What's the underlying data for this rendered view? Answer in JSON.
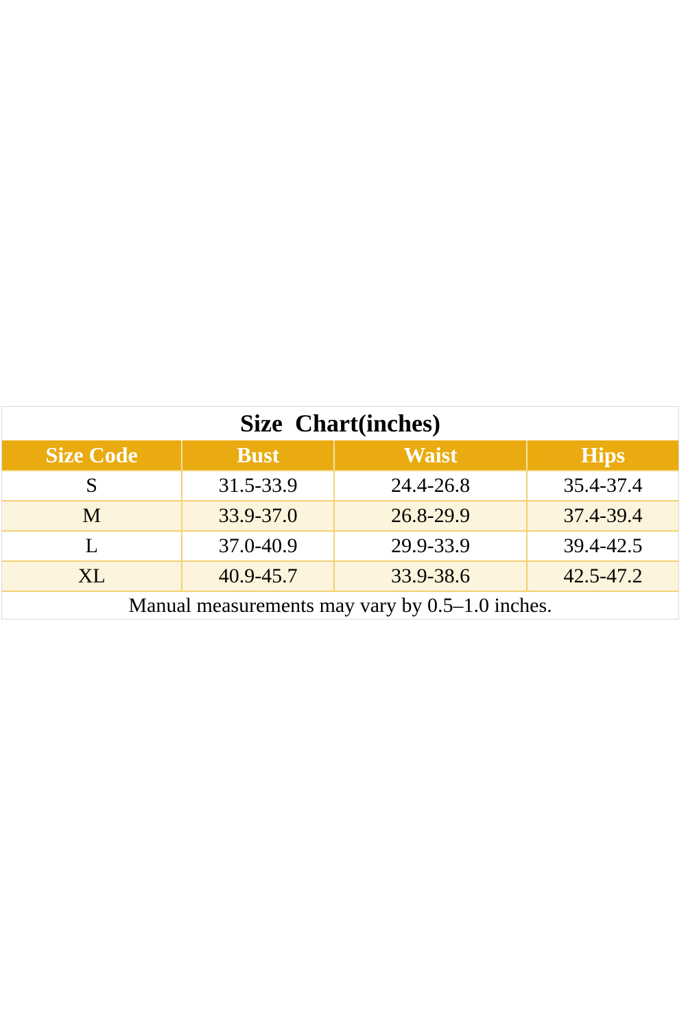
{
  "chart_data": {
    "type": "table",
    "title": "Size  Chart(inches)",
    "unit": "inches",
    "columns": [
      "Size Code",
      "Bust",
      "Waist",
      "Hips"
    ],
    "rows": [
      [
        "S",
        "31.5-33.9",
        "24.4-26.8",
        "35.4-37.4"
      ],
      [
        "M",
        "33.9-37.0",
        "26.8-29.9",
        "37.4-39.4"
      ],
      [
        "L",
        "37.0-40.9",
        "29.9-33.9",
        "39.4-42.5"
      ],
      [
        "XL",
        "40.9-45.7",
        "33.9-38.6",
        "42.5-47.2"
      ]
    ],
    "footnote": "Manual measurements may vary by 0.5–1.0 inches."
  },
  "colors": {
    "header_bg": "#e9ab10",
    "header_text": "#ffffff",
    "alt_row_bg": "#fcf4dc",
    "cell_border": "#f2d173",
    "outer_border": "#d9d9d9",
    "text": "#000000"
  }
}
